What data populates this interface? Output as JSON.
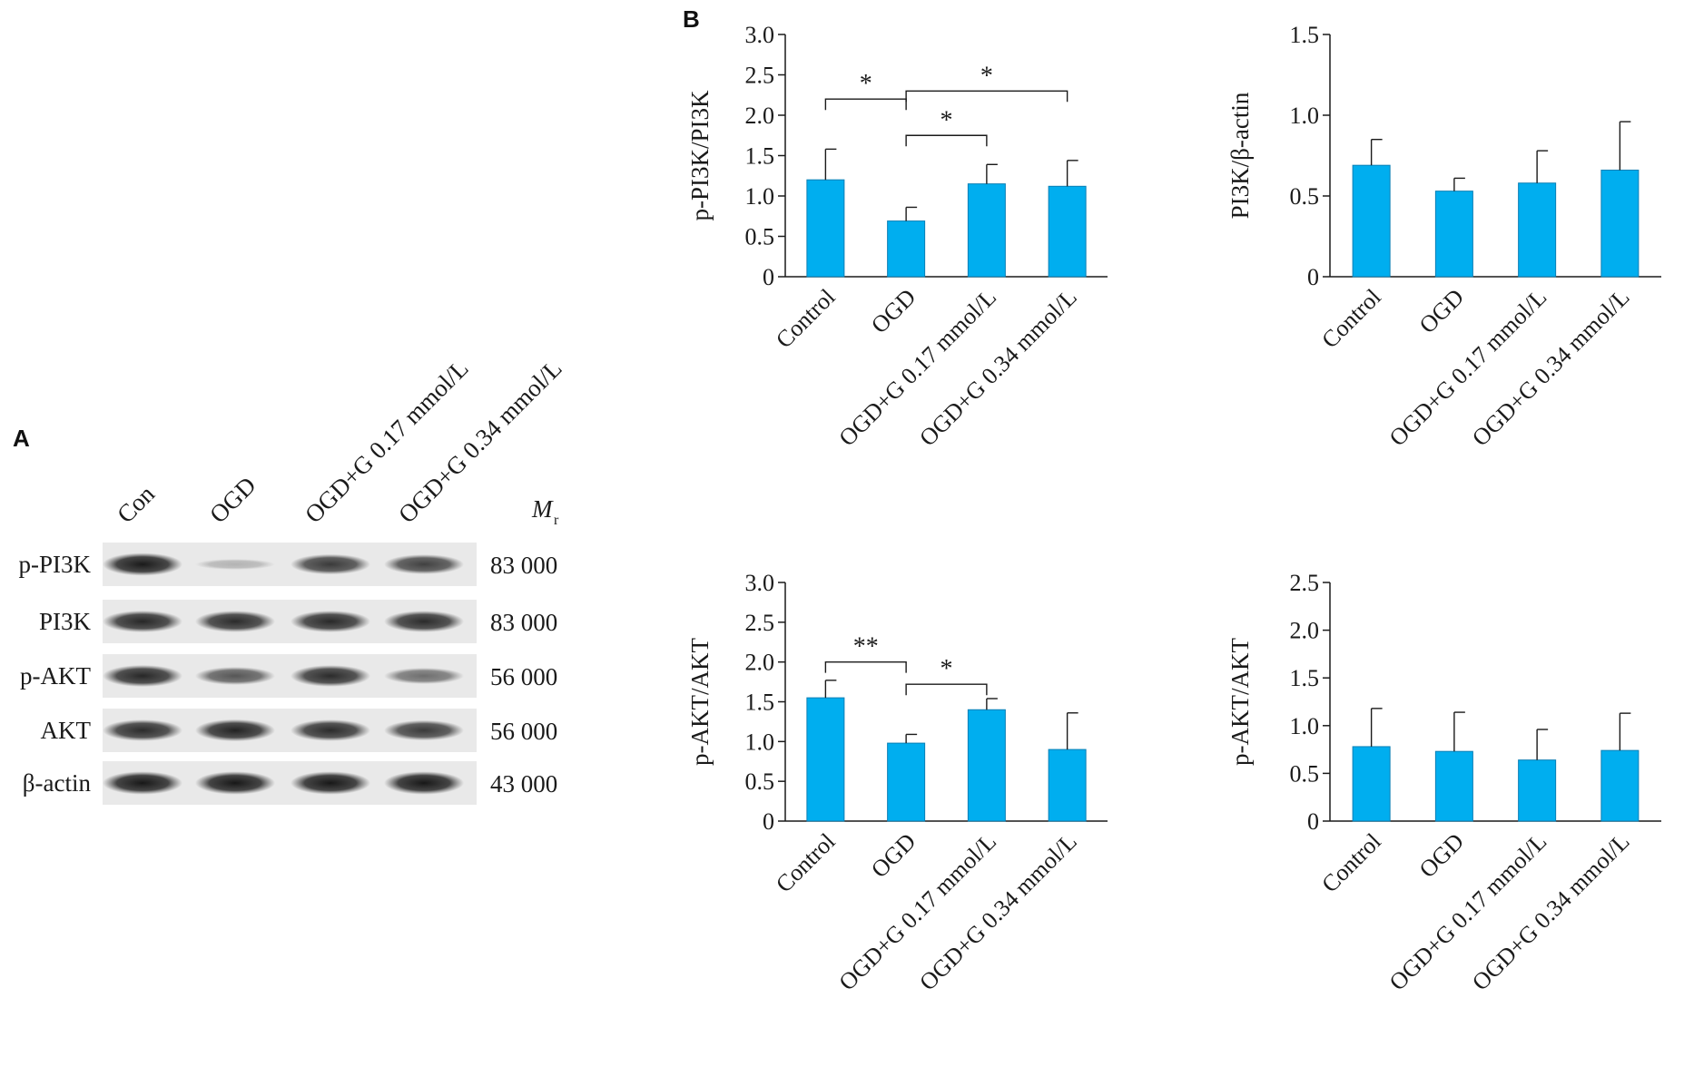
{
  "panel_a": {
    "letter": "A",
    "lanes": [
      "Con",
      "OGD",
      "OGD+G 0.17 mmol/L",
      "OGD+G 0.34 mmol/L"
    ],
    "mr_label": "M",
    "mr_sub": "r",
    "blots": [
      {
        "label": "p-PI3K",
        "mr": "83 000",
        "intensity": [
          0.95,
          0.12,
          0.78,
          0.74
        ]
      },
      {
        "label": "PI3K",
        "mr": "83 000",
        "intensity": [
          0.88,
          0.86,
          0.87,
          0.86
        ]
      },
      {
        "label": "p-AKT",
        "mr": "56 000",
        "intensity": [
          0.88,
          0.62,
          0.86,
          0.5
        ]
      },
      {
        "label": "AKT",
        "mr": "56 000",
        "intensity": [
          0.86,
          0.9,
          0.86,
          0.78
        ]
      },
      {
        "label": "β-actin",
        "mr": "43 000",
        "intensity": [
          0.97,
          0.97,
          0.97,
          0.97
        ]
      }
    ]
  },
  "panel_b": {
    "letter": "B"
  },
  "colors": {
    "bar": "#00aeef",
    "bar_edge": "#0a7fb5",
    "axis": "#1a1a1a"
  },
  "chart_data": [
    {
      "type": "bar",
      "ylabel": "p-PI3K/PI3K",
      "ylim": [
        0,
        3.0
      ],
      "yticks": [
        "0",
        "0.5",
        "1.0",
        "1.5",
        "2.0",
        "2.5",
        "3.0"
      ],
      "categories": [
        "Control",
        "OGD",
        "OGD+G 0.17 mmol/L",
        "OGD+G 0.34 mmol/L"
      ],
      "values": [
        1.2,
        0.69,
        1.15,
        1.12
      ],
      "errors": [
        0.38,
        0.17,
        0.24,
        0.32
      ],
      "significance": [
        {
          "from": 0,
          "to": 1,
          "label": "*",
          "level": 2.2
        },
        {
          "from": 1,
          "to": 2,
          "label": "*",
          "level": 1.75
        },
        {
          "from": 1,
          "to": 3,
          "label": "*",
          "level": 2.3
        }
      ]
    },
    {
      "type": "bar",
      "ylabel": "PI3K/β-actin",
      "ylim": [
        0,
        1.5
      ],
      "yticks": [
        "0",
        "0.5",
        "1.0",
        "1.5"
      ],
      "categories": [
        "Control",
        "OGD",
        "OGD+G 0.17 mmol/L",
        "OGD+G 0.34 mmol/L"
      ],
      "values": [
        0.69,
        0.53,
        0.58,
        0.66
      ],
      "errors": [
        0.16,
        0.08,
        0.2,
        0.3
      ],
      "significance": []
    },
    {
      "type": "bar",
      "ylabel": "p-AKT/AKT",
      "ylim": [
        0,
        3.0
      ],
      "yticks": [
        "0",
        "0.5",
        "1.0",
        "1.5",
        "2.0",
        "2.5",
        "3.0"
      ],
      "categories": [
        "Control",
        "OGD",
        "OGD+G 0.17 mmol/L",
        "OGD+G 0.34 mmol/L"
      ],
      "values": [
        1.55,
        0.98,
        1.4,
        0.9
      ],
      "errors": [
        0.22,
        0.11,
        0.14,
        0.46
      ],
      "significance": [
        {
          "from": 0,
          "to": 1,
          "label": "**",
          "level": 2.0
        },
        {
          "from": 1,
          "to": 2,
          "label": "*",
          "level": 1.72
        }
      ]
    },
    {
      "type": "bar",
      "ylabel": "p-AKT/AKT",
      "ylim": [
        0,
        2.5
      ],
      "yticks": [
        "0",
        "0.5",
        "1.0",
        "1.5",
        "2.0",
        "2.5"
      ],
      "categories": [
        "Control",
        "OGD",
        "OGD+G 0.17 mmol/L",
        "OGD+G 0.34 mmol/L"
      ],
      "values": [
        0.78,
        0.73,
        0.64,
        0.74
      ],
      "errors": [
        0.4,
        0.41,
        0.32,
        0.39
      ],
      "significance": []
    }
  ]
}
